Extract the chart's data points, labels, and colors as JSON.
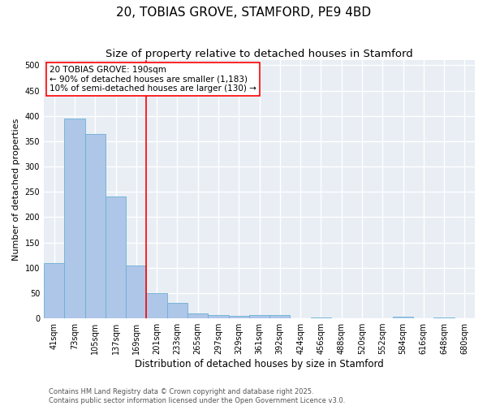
{
  "title": "20, TOBIAS GROVE, STAMFORD, PE9 4BD",
  "subtitle": "Size of property relative to detached houses in Stamford",
  "xlabel": "Distribution of detached houses by size in Stamford",
  "ylabel": "Number of detached properties",
  "categories": [
    "41sqm",
    "73sqm",
    "105sqm",
    "137sqm",
    "169sqm",
    "201sqm",
    "233sqm",
    "265sqm",
    "297sqm",
    "329sqm",
    "361sqm",
    "392sqm",
    "424sqm",
    "456sqm",
    "488sqm",
    "520sqm",
    "552sqm",
    "584sqm",
    "616sqm",
    "648sqm",
    "680sqm"
  ],
  "values": [
    110,
    395,
    365,
    240,
    105,
    50,
    30,
    10,
    7,
    5,
    7,
    6,
    0,
    2,
    0,
    0,
    0,
    3,
    0,
    2,
    0
  ],
  "bar_color": "#aec6e8",
  "bar_edge_color": "#6baed6",
  "vline_color": "red",
  "vline_x_idx": 4.5,
  "annotation_text": "20 TOBIAS GROVE: 190sqm\n← 90% of detached houses are smaller (1,183)\n10% of semi-detached houses are larger (130) →",
  "ylim": [
    0,
    510
  ],
  "yticks": [
    0,
    50,
    100,
    150,
    200,
    250,
    300,
    350,
    400,
    450,
    500
  ],
  "background_color": "#e8eef4",
  "grid_color": "#ffffff",
  "footer": "Contains HM Land Registry data © Crown copyright and database right 2025.\nContains public sector information licensed under the Open Government Licence v3.0.",
  "title_fontsize": 11,
  "subtitle_fontsize": 9.5,
  "xlabel_fontsize": 8.5,
  "ylabel_fontsize": 8,
  "tick_fontsize": 7,
  "annotation_fontsize": 7.5,
  "footer_fontsize": 6
}
